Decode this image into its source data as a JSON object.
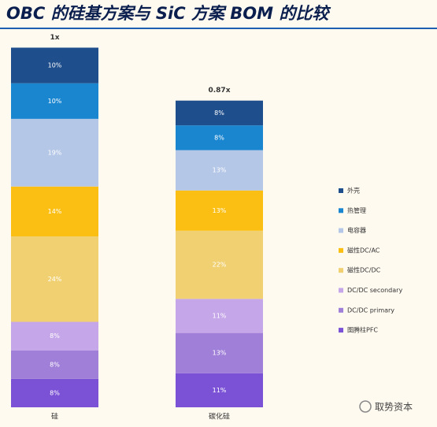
{
  "chart_data": {
    "type": "stacked-bar",
    "title": "OBC 的硅基方案与 SiC 方案 BOM 的比较",
    "categories": [
      "硅",
      "碳化硅"
    ],
    "totals": [
      {
        "value": 1,
        "label": "1x"
      },
      {
        "value": 0.87,
        "label": "0.87x"
      }
    ],
    "series": [
      {
        "name": "外壳",
        "color": "#1f4e8c",
        "values": [
          10,
          8
        ],
        "value_labels": [
          "10%",
          "8%"
        ]
      },
      {
        "name": "热管理",
        "color": "#1a86d0",
        "values": [
          10,
          8
        ],
        "value_labels": [
          "10%",
          "8%"
        ]
      },
      {
        "name": "电容器",
        "color": "#b4c7e7",
        "values": [
          19,
          13
        ],
        "value_labels": [
          "19%",
          "13%"
        ]
      },
      {
        "name": "磁性DC/AC",
        "color": "#fbbf14",
        "values": [
          14,
          13
        ],
        "value_labels": [
          "14%",
          "13%"
        ]
      },
      {
        "name": "磁性DC/DC",
        "color": "#f0d070",
        "values": [
          24,
          22
        ],
        "value_labels": [
          "24%",
          "22%"
        ]
      },
      {
        "name": "DC/DC secondary",
        "color": "#c5a6e8",
        "values": [
          8,
          11
        ],
        "value_labels": [
          "8%",
          "11%"
        ]
      },
      {
        "name": "DC/DC primary",
        "color": "#a07fd8",
        "values": [
          8,
          13
        ],
        "value_labels": [
          "8%",
          "13%"
        ]
      },
      {
        "name": "图腾柱PFC",
        "color": "#7b52d6",
        "values": [
          8,
          11
        ],
        "value_labels": [
          "8%",
          "11%"
        ]
      }
    ],
    "legend": "right",
    "watermark": "取势资本"
  }
}
